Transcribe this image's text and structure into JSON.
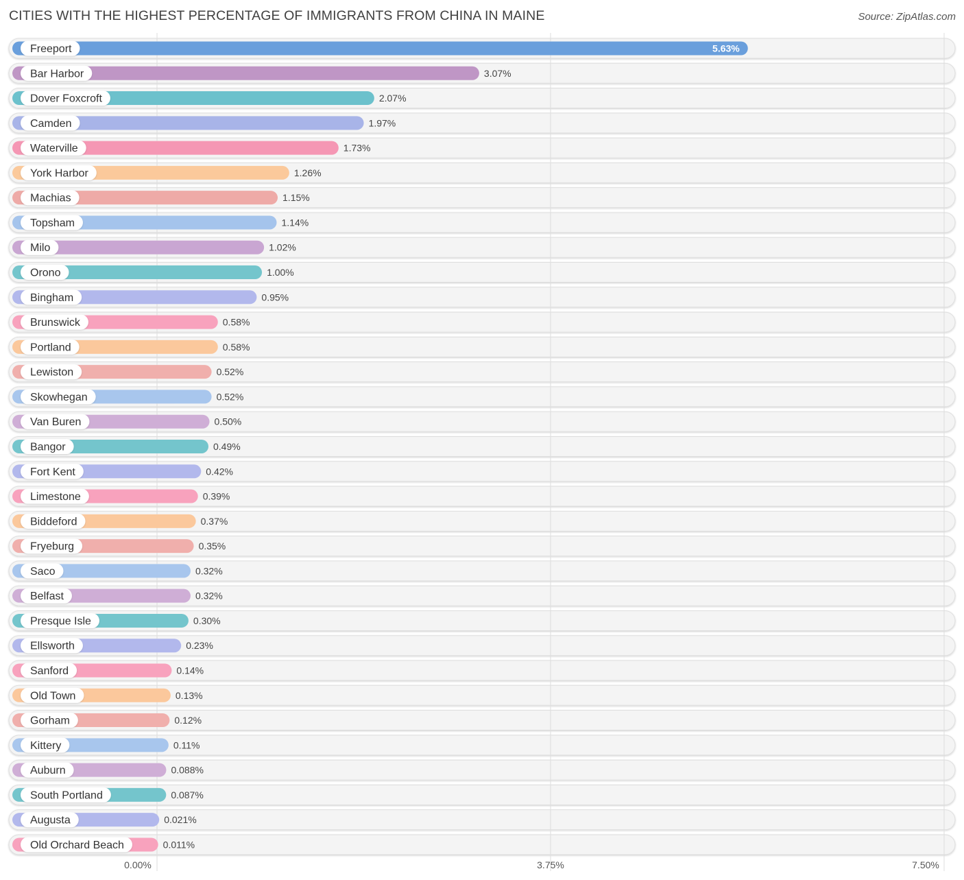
{
  "title": "CITIES WITH THE HIGHEST PERCENTAGE OF IMMIGRANTS FROM CHINA IN MAINE",
  "source": "Source: ZipAtlas.com",
  "chart_data": {
    "type": "bar",
    "orientation": "horizontal",
    "title": "CITIES WITH THE HIGHEST PERCENTAGE OF IMMIGRANTS FROM CHINA IN MAINE",
    "xlim": [
      0,
      7.5
    ],
    "xticks": [
      0,
      3.75,
      7.5
    ],
    "xtick_labels": [
      "0.00%",
      "3.75%",
      "7.50%"
    ],
    "grid": true,
    "categories": [
      "Freeport",
      "Bar Harbor",
      "Dover Foxcroft",
      "Camden",
      "Waterville",
      "York Harbor",
      "Machias",
      "Topsham",
      "Milo",
      "Orono",
      "Bingham",
      "Brunswick",
      "Portland",
      "Lewiston",
      "Skowhegan",
      "Van Buren",
      "Bangor",
      "Fort Kent",
      "Limestone",
      "Biddeford",
      "Fryeburg",
      "Saco",
      "Belfast",
      "Presque Isle",
      "Ellsworth",
      "Sanford",
      "Old Town",
      "Gorham",
      "Kittery",
      "Auburn",
      "South Portland",
      "Augusta",
      "Old Orchard Beach"
    ],
    "values": [
      5.63,
      3.07,
      2.07,
      1.97,
      1.73,
      1.26,
      1.15,
      1.14,
      1.02,
      1.0,
      0.95,
      0.58,
      0.58,
      0.52,
      0.52,
      0.5,
      0.49,
      0.42,
      0.39,
      0.37,
      0.35,
      0.32,
      0.32,
      0.3,
      0.23,
      0.14,
      0.13,
      0.12,
      0.11,
      0.088,
      0.087,
      0.021,
      0.011
    ],
    "value_labels": [
      "5.63%",
      "3.07%",
      "2.07%",
      "1.97%",
      "1.73%",
      "1.26%",
      "1.15%",
      "1.14%",
      "1.02%",
      "1.00%",
      "0.95%",
      "0.58%",
      "0.58%",
      "0.52%",
      "0.52%",
      "0.50%",
      "0.49%",
      "0.42%",
      "0.39%",
      "0.37%",
      "0.35%",
      "0.32%",
      "0.32%",
      "0.30%",
      "0.23%",
      "0.14%",
      "0.13%",
      "0.12%",
      "0.11%",
      "0.088%",
      "0.087%",
      "0.021%",
      "0.011%"
    ],
    "colors": [
      "#6a9fdc",
      "#bf96c5",
      "#6cc1cc",
      "#a8b4e8",
      "#f597b4",
      "#fbc99b",
      "#eeaaa7",
      "#a5c4ec",
      "#c9a6d2",
      "#74c5cc",
      "#b2b8ec",
      "#f8a2bd",
      "#fbc89c",
      "#f0afac",
      "#a8c6ed",
      "#cfaed6",
      "#74c5cc",
      "#b2b8ec",
      "#f8a2bd",
      "#fbc89c",
      "#f0afac",
      "#a8c6ed",
      "#cfaed6",
      "#74c5cc",
      "#b2b8ec",
      "#f8a2bd",
      "#fbc89c",
      "#f0afac",
      "#a8c6ed",
      "#cfaed6",
      "#74c5cc",
      "#b2b8ec",
      "#f8a2bd"
    ]
  }
}
